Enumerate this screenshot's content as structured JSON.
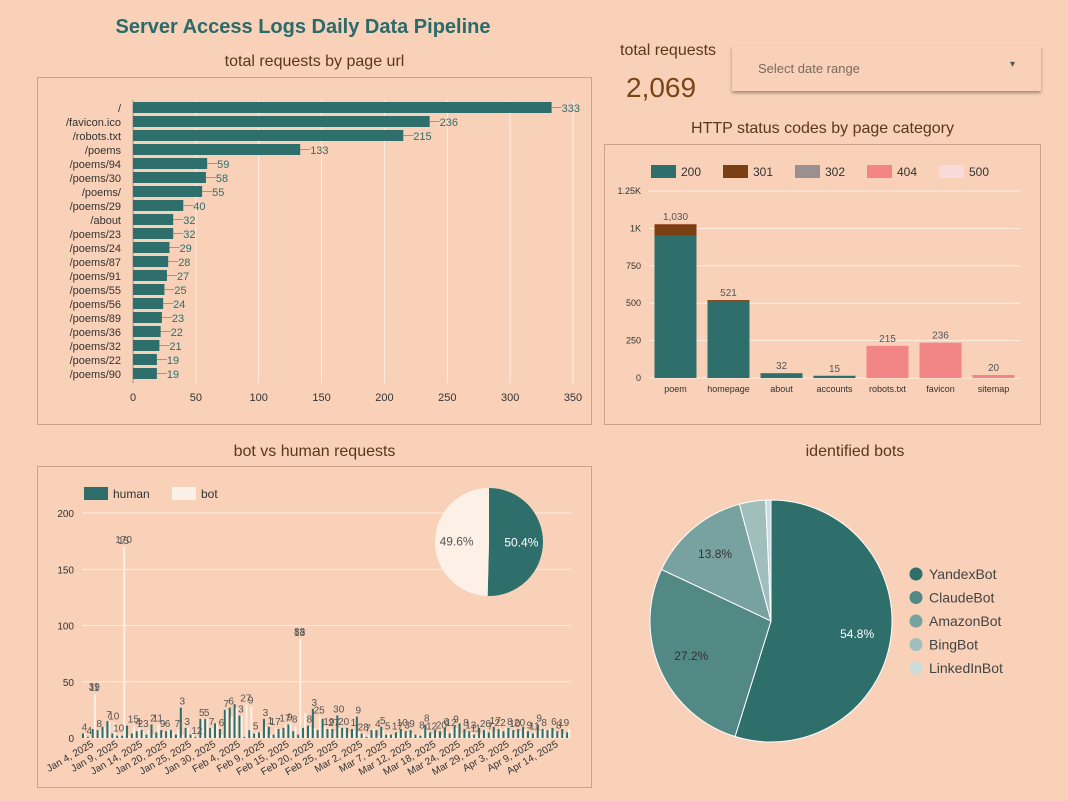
{
  "page": {
    "title": "Server Access Logs Daily Data Pipeline"
  },
  "kpi": {
    "label": "total requests",
    "value": "2,069"
  },
  "date_picker": {
    "placeholder": "Select date range"
  },
  "colors": {
    "background": "#f8d1b8",
    "teal": "#2e6f6c",
    "status_200": "#2e6f6c",
    "status_301": "#7a3f12",
    "status_302": "#9a9090",
    "status_404": "#f28585",
    "status_500": "#f7dada",
    "human": "#2e6f6c",
    "bot": "#fdf0e6",
    "pie_bots": [
      "#2e6f6c",
      "#528985",
      "#78a29f",
      "#9fbebc",
      "#c8dddc"
    ]
  },
  "panels": {
    "urls": {
      "title": "total requests by page url"
    },
    "status": {
      "title": "HTTP status codes by page category"
    },
    "botvshuman": {
      "title": "bot vs human requests"
    },
    "bots": {
      "title": "identified bots"
    }
  },
  "chart_data": [
    {
      "id": "urls",
      "type": "bar",
      "orientation": "horizontal",
      "categories": [
        "/",
        "/favicon.ico",
        "/robots.txt",
        "/poems",
        "/poems/94",
        "/poems/30",
        "/poems/",
        "/poems/29",
        "/about",
        "/poems/23",
        "/poems/24",
        "/poems/87",
        "/poems/91",
        "/poems/55",
        "/poems/56",
        "/poems/89",
        "/poems/36",
        "/poems/32",
        "/poems/22",
        "/poems/90"
      ],
      "values": [
        333,
        236,
        215,
        133,
        59,
        58,
        55,
        40,
        32,
        32,
        29,
        28,
        27,
        25,
        24,
        23,
        22,
        21,
        19,
        19
      ],
      "xlim": [
        0,
        350
      ],
      "xticks": [
        "0",
        "50",
        "100",
        "150",
        "200",
        "250",
        "300",
        "350"
      ],
      "title": "total requests by page url"
    },
    {
      "id": "status",
      "type": "bar",
      "stacked": true,
      "categories": [
        "poem",
        "homepage",
        "about",
        "accounts",
        "robots.txt",
        "favicon",
        "sitemap"
      ],
      "series": [
        {
          "name": "200",
          "values": [
            950,
            515,
            30,
            15,
            0,
            0,
            0
          ]
        },
        {
          "name": "301",
          "values": [
            78,
            6,
            2,
            0,
            0,
            0,
            0
          ]
        },
        {
          "name": "302",
          "values": [
            0,
            0,
            0,
            0,
            0,
            0,
            0
          ]
        },
        {
          "name": "404",
          "values": [
            2,
            0,
            0,
            0,
            215,
            236,
            20
          ]
        },
        {
          "name": "500",
          "values": [
            0,
            0,
            0,
            0,
            0,
            0,
            0
          ]
        }
      ],
      "totals": [
        "1,030",
        "521",
        "32",
        "15",
        "215",
        "236",
        "20"
      ],
      "ylim": [
        0,
        1250
      ],
      "yticks": [
        "0",
        "250",
        "500",
        "750",
        "1K",
        "1.25K"
      ],
      "title": "HTTP status codes by page category"
    },
    {
      "id": "botvshuman",
      "type": "bar",
      "stacked": false,
      "series": [
        {
          "name": "human",
          "values": [
            4,
            1,
            8,
            7,
            10,
            15,
            4,
            2,
            2,
            11,
            4,
            6,
            7,
            3,
            12,
            5,
            7,
            6,
            7,
            3,
            27,
            9,
            3,
            1,
            17,
            17,
            9,
            13,
            8,
            25,
            27,
            30,
            20,
            1,
            7,
            4,
            5,
            17,
            10,
            3,
            8,
            9,
            12,
            6,
            3,
            9,
            11,
            26,
            7,
            17,
            8,
            8,
            20,
            9,
            9,
            8,
            19,
            4,
            1,
            7,
            7,
            10,
            3,
            3,
            5,
            8,
            6,
            7,
            3,
            2,
            12,
            5,
            7,
            6,
            9,
            4,
            11,
            13,
            8,
            6,
            3,
            9,
            7,
            5,
            10,
            8,
            6,
            9,
            7,
            8,
            10,
            6,
            4,
            12,
            8,
            7,
            9,
            6,
            8,
            5
          ]
        },
        {
          "name": "bot",
          "values": [
            4,
            1,
            39,
            7,
            10,
            15,
            14,
            3,
            170,
            2,
            11,
            9,
            6,
            7,
            3,
            12,
            5,
            7,
            6,
            7,
            3,
            9,
            5,
            1,
            17,
            17,
            9,
            13,
            3,
            25,
            19,
            27,
            20,
            30,
            28,
            5,
            5,
            10,
            3,
            9,
            8,
            12,
            13,
            11,
            88,
            22,
            10,
            9,
            19,
            10,
            9,
            6,
            9,
            8,
            5,
            7,
            6,
            4,
            3,
            8,
            2,
            7,
            5,
            3,
            4,
            6,
            5,
            4,
            3,
            6,
            7,
            4,
            5,
            3,
            6,
            8,
            9,
            4,
            5,
            6,
            3,
            4,
            7,
            5,
            6,
            8,
            9,
            7,
            5,
            6,
            8,
            4,
            5,
            6,
            7,
            8,
            6,
            5,
            4,
            8
          ]
        }
      ],
      "visible_labels": [
        "4",
        "4",
        "11",
        "8",
        "7",
        "10",
        "10",
        "15",
        "15",
        "4",
        "23",
        "2",
        "11",
        "9",
        "6",
        "7",
        "3",
        "3",
        "12",
        "5",
        "5",
        "7",
        "6",
        "7",
        "6",
        "3",
        "27",
        "9",
        "5",
        "3",
        "1",
        "17",
        "17",
        "9",
        "8",
        "13",
        "8",
        "3",
        "25",
        "19",
        "27",
        "30",
        "20",
        "1",
        "9",
        "28",
        "7",
        "4",
        "5",
        "5",
        "17",
        "10",
        "3",
        "9",
        "8",
        "8",
        "12",
        "20",
        "6",
        "12",
        "9",
        "8",
        "13",
        "11",
        "26",
        "7",
        "17",
        "22",
        "8",
        "10",
        "20",
        "9",
        "11",
        "9",
        "8",
        "6",
        "8",
        "19",
        "39",
        "170",
        "88"
      ],
      "x_ticks": [
        "Jan 4, 2025",
        "Jan 9, 2025",
        "Jan 14, 2025",
        "Jan 20, 2025",
        "Jan 25, 2025",
        "Jan 30, 2025",
        "Feb 4, 2025",
        "Feb 9, 2025",
        "Feb 15, 2025",
        "Feb 20, 2025",
        "Feb 25, 2025",
        "Mar 2, 2025",
        "Mar 7, 2025",
        "Mar 12, 2025",
        "Mar 18, 2025",
        "Mar 24, 2025",
        "Mar 29, 2025",
        "Apr 3, 2025",
        "Apr 9, 2025",
        "Apr 14, 2025"
      ],
      "ylim": [
        0,
        200
      ],
      "yticks": [
        "0",
        "50",
        "100",
        "150",
        "200"
      ],
      "inset_pie": {
        "slices": [
          {
            "name": "human",
            "value": 50.4,
            "label": "50.4%"
          },
          {
            "name": "bot",
            "value": 49.6,
            "label": "49.6%"
          }
        ]
      },
      "title": "bot vs human requests"
    },
    {
      "id": "bots",
      "type": "pie",
      "slices": [
        {
          "name": "YandexBot",
          "value": 54.8,
          "label": "54.8%"
        },
        {
          "name": "ClaudeBot",
          "value": 27.2,
          "label": "27.2%"
        },
        {
          "name": "AmazonBot",
          "value": 13.8,
          "label": "13.8%"
        },
        {
          "name": "BingBot",
          "value": 3.5,
          "label": ""
        },
        {
          "name": "LinkedInBot",
          "value": 0.7,
          "label": ""
        }
      ],
      "title": "identified bots"
    }
  ]
}
